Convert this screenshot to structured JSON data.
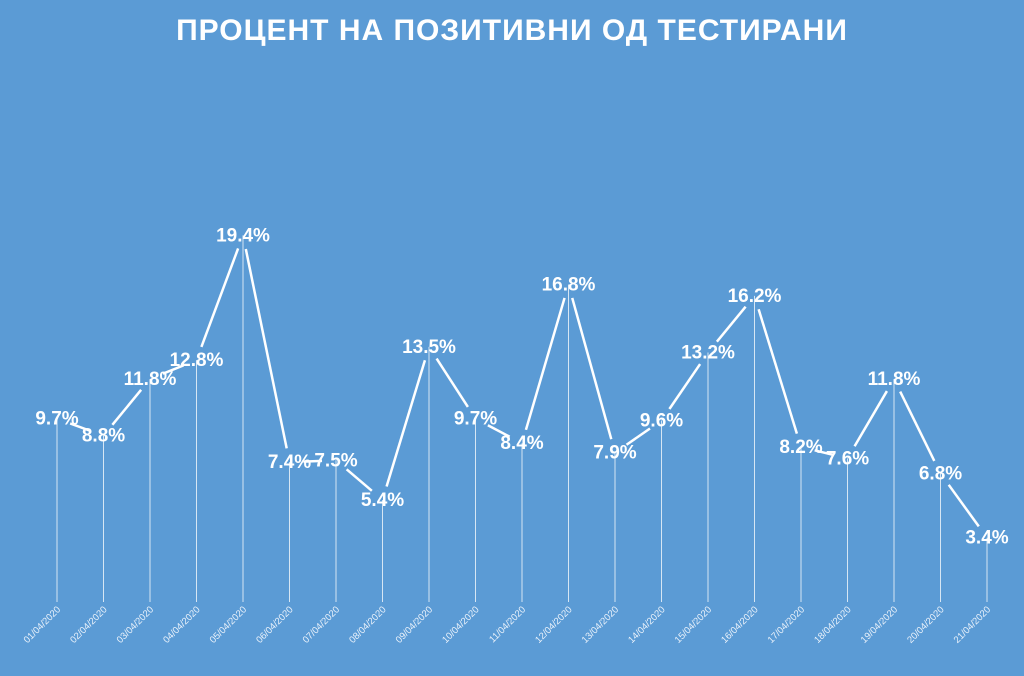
{
  "chart_data": {
    "type": "line",
    "title": "ПРОЦЕНТ НА ПОЗИТИВНИ ОД ТЕСТИРАНИ",
    "xlabel": "",
    "ylabel": "",
    "ylim": [
      0,
      21
    ],
    "grid": false,
    "legend": "none",
    "categories": [
      "01/04/2020",
      "02/04/2020",
      "03/04/2020",
      "04/04/2020",
      "05/04/2020",
      "06/04/2020",
      "07/04/2020",
      "08/04/2020",
      "09/04/2020",
      "10/04/2020",
      "11/04/2020",
      "12/04/2020",
      "13/04/2020",
      "14/04/2020",
      "15/04/2020",
      "16/04/2020",
      "17/04/2020",
      "18/04/2020",
      "19/04/2020",
      "20/04/2020",
      "21/04/2020"
    ],
    "values": [
      9.7,
      8.8,
      11.8,
      12.8,
      19.4,
      7.4,
      7.5,
      5.4,
      13.5,
      9.7,
      8.4,
      16.8,
      7.9,
      9.6,
      13.2,
      16.2,
      8.2,
      7.6,
      11.8,
      6.8,
      3.4
    ],
    "labels": [
      "9.7%",
      "8.8%",
      "11.8%",
      "12.8%",
      "19.4%",
      "7.4%",
      "7.5%",
      "5.4%",
      "13.5%",
      "9.7%",
      "8.4%",
      "16.8%",
      "7.9%",
      "9.6%",
      "13.2%",
      "16.2%",
      "8.2%",
      "7.6%",
      "11.8%",
      "6.8%",
      "3.4%"
    ]
  },
  "colors": {
    "background": "#5B9BD5",
    "line": "#FFFFFF",
    "text": "#FFFFFF"
  }
}
